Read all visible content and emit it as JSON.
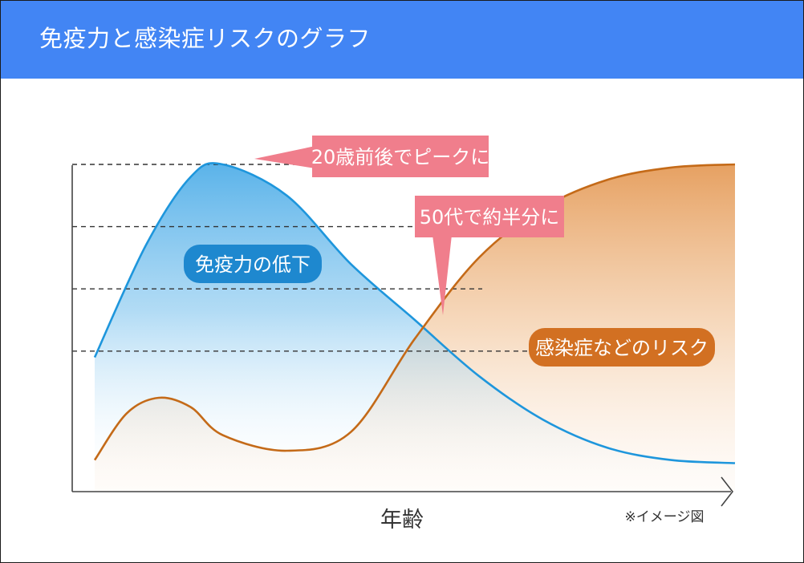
{
  "header": {
    "title": "免疫力と感染症リスクのグラフ"
  },
  "colors": {
    "header_bg": "#4285f4",
    "immunity_line": "#1e96dc",
    "risk_line": "#c46a18",
    "callout_pink": "#f07e8c",
    "label_blue": "#1e88cf",
    "label_orange": "#d27022"
  },
  "chart_data": {
    "type": "line",
    "title": "",
    "xlabel": "年齢",
    "ylabel": "",
    "note": "※イメージ図",
    "grid": "dashed horizontal reference lines",
    "series": [
      {
        "name": "免疫力の低下",
        "x": [
          0,
          8,
          15,
          20,
          30,
          40,
          50,
          60,
          70,
          80,
          90,
          100
        ],
        "values": [
          38,
          74,
          96,
          100,
          90,
          68,
          50,
          32,
          18,
          9,
          5,
          4
        ]
      },
      {
        "name": "感染症などのリスク",
        "x": [
          0,
          5,
          10,
          15,
          20,
          30,
          40,
          50,
          60,
          70,
          80,
          90,
          100
        ],
        "values": [
          5,
          20,
          25,
          22,
          13,
          8,
          14,
          44,
          70,
          86,
          95,
          99,
          100
        ]
      }
    ],
    "reference_levels": [
      100,
      80,
      60,
      40
    ],
    "annotations": [
      {
        "text": "20歳前後でピークに",
        "target": "immunity peak"
      },
      {
        "text": "50代で約半分に",
        "target": "immunity at 50s"
      }
    ],
    "series_labels": [
      {
        "text": "免疫力の低下"
      },
      {
        "text": "感染症などのリスク"
      }
    ]
  }
}
